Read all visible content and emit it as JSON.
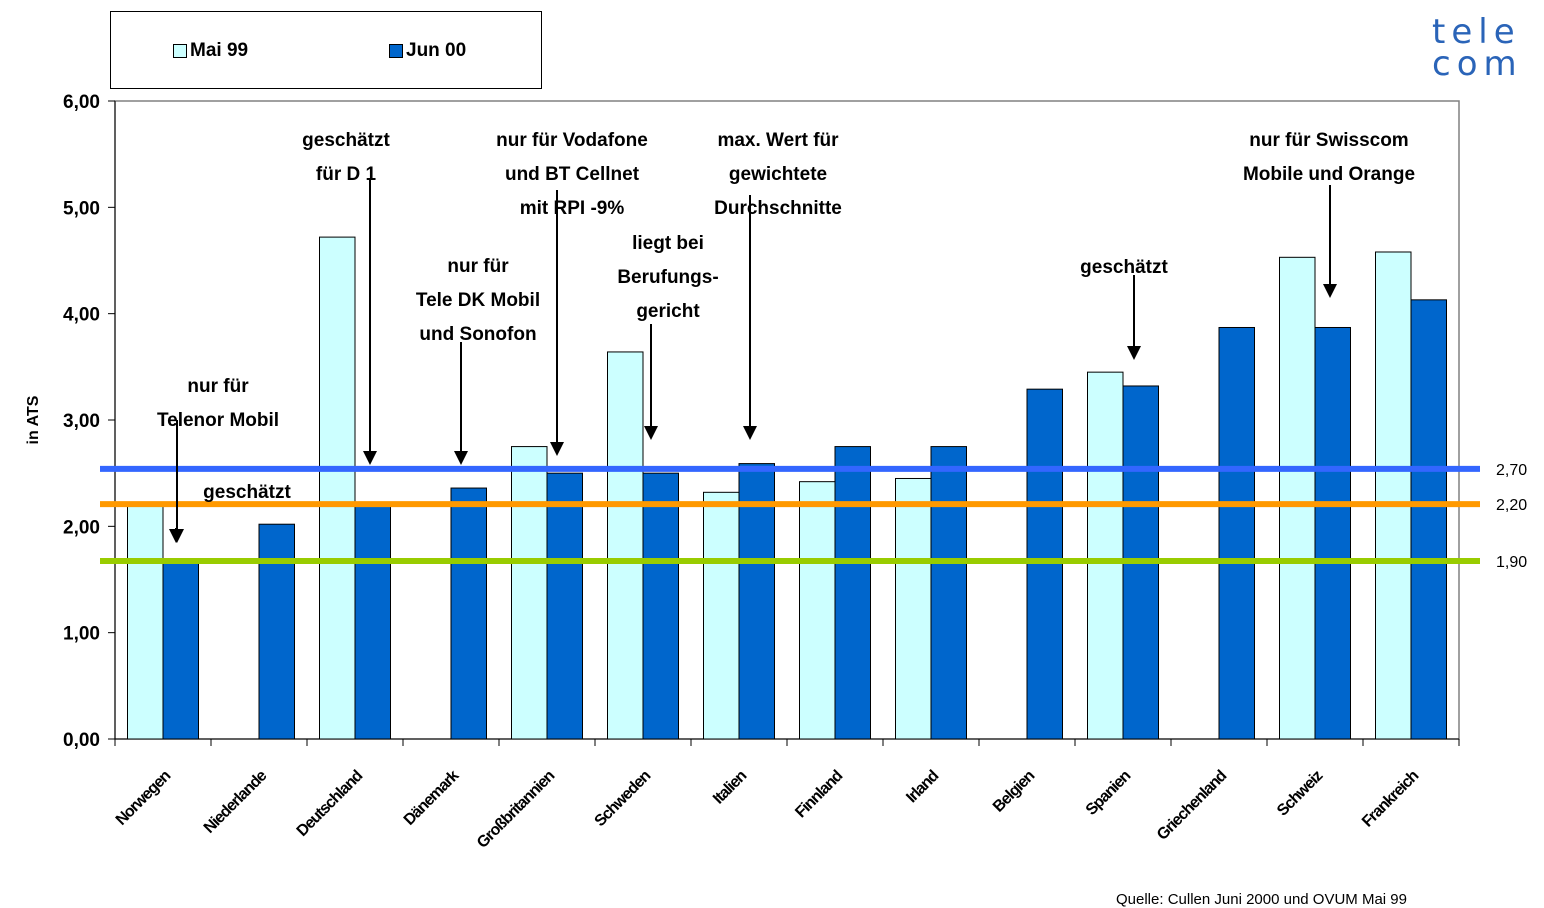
{
  "brand": {
    "line1": "tele",
    "line2": "com"
  },
  "source_note": "Quelle: Cullen Juni 2000 und OVUM Mai 99",
  "colors": {
    "mai99": "#ccffff",
    "jun00": "#0066cc",
    "line_270": "#3366ff",
    "line_220": "#ff9900",
    "line_190": "#99cc00"
  },
  "chart_data": {
    "type": "bar",
    "ylabel": "in ATS",
    "ylim": [
      0,
      6
    ],
    "yticks": [
      "0,00",
      "1,00",
      "2,00",
      "3,00",
      "4,00",
      "5,00",
      "6,00"
    ],
    "legend_position": "top-left",
    "categories": [
      "Norwegen",
      "Niederlande",
      "Deutschland",
      "Dänemark",
      "Großbritannien",
      "Schweden",
      "Italien",
      "Finnland",
      "Irland",
      "Belgien",
      "Spanien",
      "Griechenland",
      "Schweiz",
      "Frankreich"
    ],
    "series": [
      {
        "name": "Mai 99",
        "values": [
          2.2,
          null,
          4.72,
          null,
          2.75,
          3.64,
          2.32,
          2.42,
          2.45,
          null,
          3.45,
          null,
          4.53,
          4.58
        ]
      },
      {
        "name": "Jun 00",
        "values": [
          1.66,
          2.02,
          2.2,
          2.36,
          2.5,
          2.5,
          2.59,
          2.75,
          2.75,
          3.29,
          3.32,
          3.87,
          3.87,
          4.13
        ]
      }
    ],
    "reference_lines": [
      {
        "value": 2.7,
        "label": "2,70"
      },
      {
        "value": 2.2,
        "label": "2,20"
      },
      {
        "value": 1.9,
        "label": "1,90"
      }
    ],
    "annotations": [
      {
        "lines": [
          "nur für",
          "Telenor Mobil"
        ]
      },
      {
        "lines": [
          "geschätzt"
        ]
      },
      {
        "lines": [
          "geschätzt",
          "für D 1"
        ]
      },
      {
        "lines": [
          "nur für",
          "Tele DK Mobil",
          "und Sonofon"
        ]
      },
      {
        "lines": [
          "nur für Vodafone",
          "und BT Cellnet",
          "mit RPI -9%"
        ]
      },
      {
        "lines": [
          "liegt bei",
          "Berufungs-",
          "gericht"
        ]
      },
      {
        "lines": [
          "max. Wert für",
          "gewichtete",
          "Durchschnitte"
        ]
      },
      {
        "lines": [
          "geschätzt"
        ]
      },
      {
        "lines": [
          "nur für Swisscom",
          "Mobile und Orange"
        ]
      }
    ]
  }
}
